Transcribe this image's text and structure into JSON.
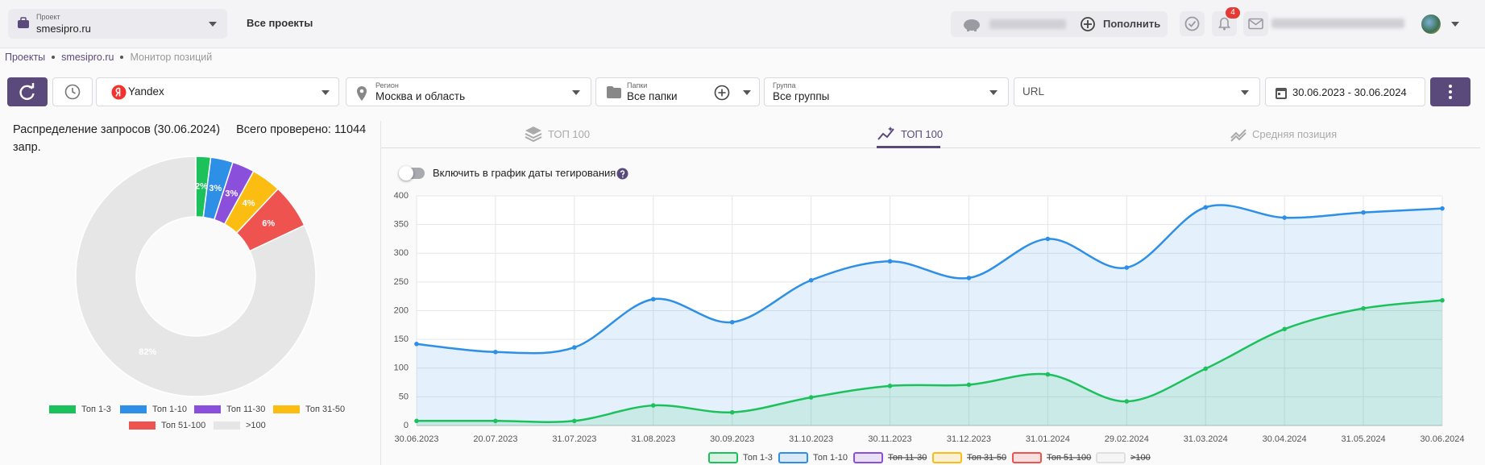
{
  "header": {
    "project_label": "Проект",
    "project": "smesipro.ru",
    "all_projects": "Все проекты",
    "top_up": "Пополнить",
    "notifications": 4
  },
  "breadcrumbs": [
    "Проекты",
    "smesipro.ru",
    "Монитор позиций"
  ],
  "toolbar": {
    "engine": "Yandex",
    "region_label": "Регион",
    "region": "Москва и область",
    "folders_label": "Папки",
    "folders": "Все папки",
    "group_label": "Группа",
    "group": "Все группы",
    "url": "URL",
    "date_range": "30.06.2023 - 30.06.2024"
  },
  "distribution": {
    "title": "Распределение запросов (30.06.2024)",
    "total": "Всего проверено: 11044 запр."
  },
  "tabs": [
    "ТОП 100",
    "ТОП 100",
    "Средняя позиция"
  ],
  "toggle_label": "Включить в график даты тегирования",
  "chart_data": [
    {
      "type": "pie",
      "categories": [
        "Топ 1-3",
        "Топ 1-10",
        "Топ 11-30",
        "Топ 31-50",
        "Топ 51-100",
        ">100"
      ],
      "values": [
        2,
        3,
        3,
        4,
        6,
        82
      ],
      "value_labels": [
        "2%",
        "3%",
        "3%",
        "4%",
        "6%",
        "82%"
      ],
      "colors": [
        "#1cc15c",
        "#2d8fe6",
        "#8a50dc",
        "#fcbd12",
        "#ef5350",
        "#e6e6e6"
      ]
    },
    {
      "type": "line",
      "categories": [
        "30.06.2023",
        "20.07.2023",
        "31.07.2023",
        "31.08.2023",
        "30.09.2023",
        "31.10.2023",
        "30.11.2023",
        "31.12.2023",
        "31.01.2024",
        "29.02.2024",
        "31.03.2024",
        "30.04.2024",
        "31.05.2024",
        "30.06.2024"
      ],
      "series": [
        {
          "name": "Топ 1-3",
          "color": "#1cc15c",
          "values": [
            8,
            8,
            8,
            35,
            23,
            49,
            69,
            71,
            89,
            42,
            99,
            168,
            204,
            218
          ]
        },
        {
          "name": "Топ 1-10",
          "color": "#2d8fe6",
          "values": [
            142,
            128,
            136,
            220,
            180,
            253,
            286,
            257,
            325,
            275,
            380,
            362,
            371,
            378
          ]
        }
      ],
      "hidden_series": [
        {
          "name": "Топ 11-30",
          "color": "#8a50dc"
        },
        {
          "name": "Топ 31-50",
          "color": "#fcbd12"
        },
        {
          "name": "Топ 51-100",
          "color": "#ef5350"
        },
        {
          "name": ">100",
          "color": "#e0e0e0"
        }
      ],
      "ylim": [
        0,
        400
      ],
      "yticks": [
        0,
        50,
        100,
        150,
        200,
        250,
        300,
        350,
        400
      ],
      "grid": true
    }
  ]
}
